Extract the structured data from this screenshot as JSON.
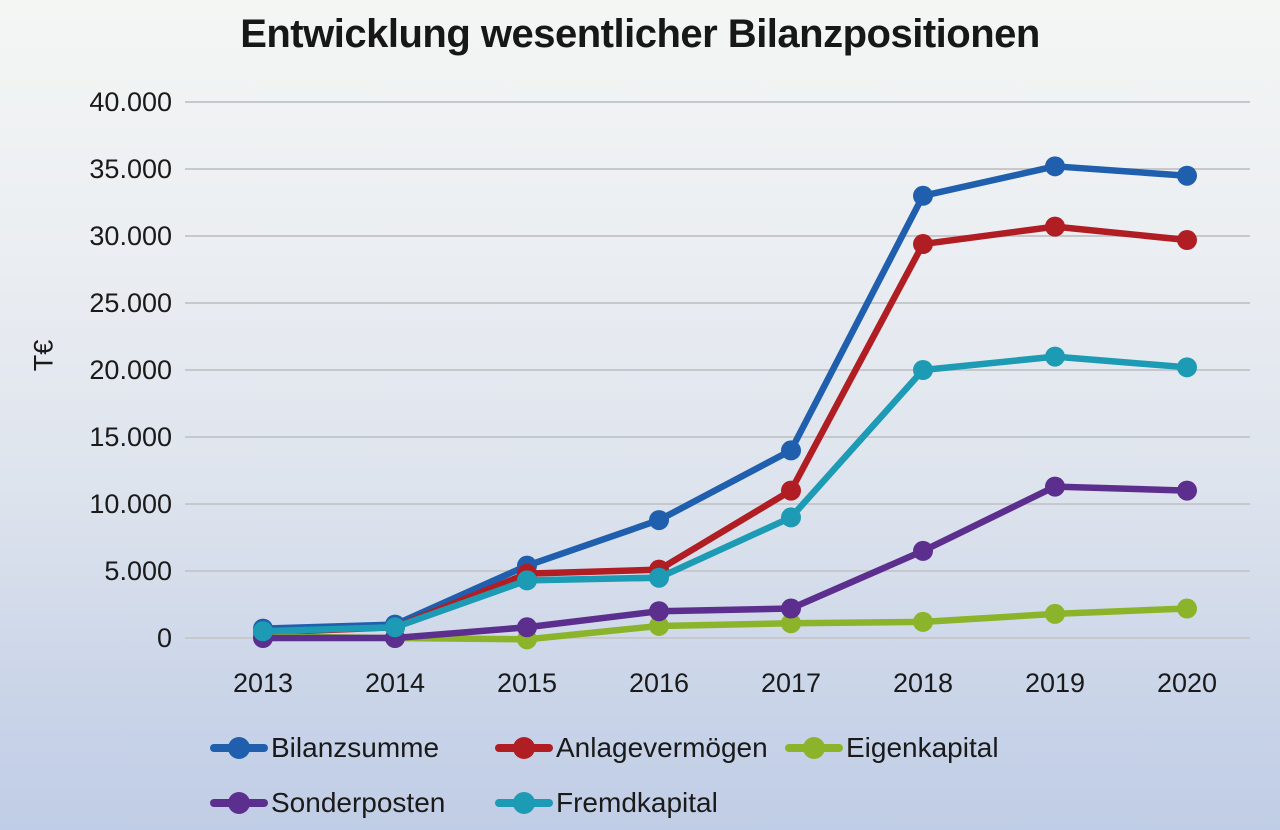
{
  "title": "Entwicklung wesentlicher Bilanzpositionen",
  "chart_data": {
    "type": "line",
    "title": "Entwicklung wesentlicher Bilanzpositionen",
    "xlabel": "",
    "ylabel": "T€",
    "ylim": [
      0,
      40000
    ],
    "grid": true,
    "legend_position": "bottom",
    "categories": [
      "2013",
      "2014",
      "2015",
      "2016",
      "2017",
      "2018",
      "2019",
      "2020"
    ],
    "y_ticks": [
      {
        "value": 0,
        "label": "0"
      },
      {
        "value": 5000,
        "label": "5.000"
      },
      {
        "value": 10000,
        "label": "10.000"
      },
      {
        "value": 15000,
        "label": "15.000"
      },
      {
        "value": 20000,
        "label": "20.000"
      },
      {
        "value": 25000,
        "label": "25.000"
      },
      {
        "value": 30000,
        "label": "30.000"
      },
      {
        "value": 35000,
        "label": "35.000"
      },
      {
        "value": 40000,
        "label": "40.000"
      }
    ],
    "series": [
      {
        "name": "Bilanzsumme",
        "color": "#1f5fae",
        "values": [
          700,
          1000,
          5400,
          8800,
          14000,
          33000,
          35200,
          34500
        ]
      },
      {
        "name": "Anlagevermögen",
        "color": "#b01e24",
        "values": [
          400,
          800,
          4800,
          5100,
          11000,
          29400,
          30700,
          29700
        ]
      },
      {
        "name": "Eigenkapital",
        "color": "#8cb42a",
        "values": [
          100,
          0,
          -100,
          900,
          1100,
          1200,
          1800,
          2200
        ]
      },
      {
        "name": "Sonderposten",
        "color": "#5c2e8e",
        "values": [
          0,
          0,
          800,
          2000,
          2200,
          6500,
          11300,
          11000
        ]
      },
      {
        "name": "Fremdkapital",
        "color": "#1d9ab4",
        "values": [
          500,
          800,
          4300,
          4500,
          9000,
          20000,
          21000,
          20200
        ]
      }
    ],
    "legend_rows": [
      [
        "Bilanzsumme",
        "Anlagevermögen",
        "Eigenkapital"
      ],
      [
        "Sonderposten",
        "Fremdkapital"
      ]
    ],
    "gridline_color": "#c6c8cc"
  }
}
